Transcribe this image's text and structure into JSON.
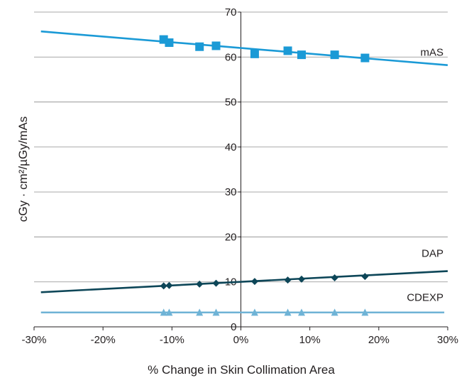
{
  "chart_data": {
    "type": "scatter",
    "xlabel": "% Change in Skin Collimation Area",
    "ylabel": "cGy · cm²/µGy/mAs",
    "xlim": [
      -30,
      30
    ],
    "ylim": [
      0,
      70
    ],
    "x_ticks": [
      -30,
      -20,
      -10,
      0,
      10,
      20,
      30
    ],
    "x_tick_labels": [
      "-30%",
      "-20%",
      "-10%",
      "0%",
      "10%",
      "20%",
      "30%"
    ],
    "y_ticks": [
      0,
      10,
      20,
      30,
      40,
      50,
      60,
      70
    ],
    "y_tick_labels": [
      "0",
      "10",
      "20",
      "30",
      "40",
      "50",
      "60",
      "70"
    ],
    "grid": "horizontal",
    "axes_cross_at_zero": true,
    "series": [
      {
        "name": "mAS",
        "color": "#1b9ad6",
        "marker": "square",
        "x": [
          -11.2,
          -10.4,
          -6.0,
          -3.6,
          2.0,
          6.8,
          8.8,
          13.6,
          18.0
        ],
        "y": [
          63.9,
          63.2,
          62.3,
          62.5,
          60.7,
          61.4,
          60.5,
          60.5,
          59.8
        ],
        "trendline": {
          "x": [
            -29,
            30
          ],
          "y": [
            65.7,
            58.2
          ]
        }
      },
      {
        "name": "DAP",
        "color": "#0d4658",
        "marker": "diamond",
        "x": [
          -11.2,
          -10.4,
          -6.0,
          -3.6,
          2.0,
          6.8,
          8.8,
          13.6,
          18.0
        ],
        "y": [
          9.1,
          9.2,
          9.5,
          9.7,
          10.1,
          10.4,
          10.6,
          10.9,
          11.2
        ],
        "trendline": {
          "x": [
            -29,
            30
          ],
          "y": [
            7.7,
            12.4
          ]
        }
      },
      {
        "name": "CDEXP",
        "color": "#6fb3d6",
        "marker": "triangle",
        "x": [
          -11.2,
          -10.4,
          -6.0,
          -3.6,
          2.0,
          6.8,
          8.8,
          13.6,
          18.0
        ],
        "y": [
          3.1,
          3.1,
          3.1,
          3.1,
          3.1,
          3.1,
          3.1,
          3.1,
          3.1
        ],
        "trendline": {
          "x": [
            -29,
            29.5
          ],
          "y": [
            3.2,
            3.2
          ]
        }
      }
    ]
  }
}
